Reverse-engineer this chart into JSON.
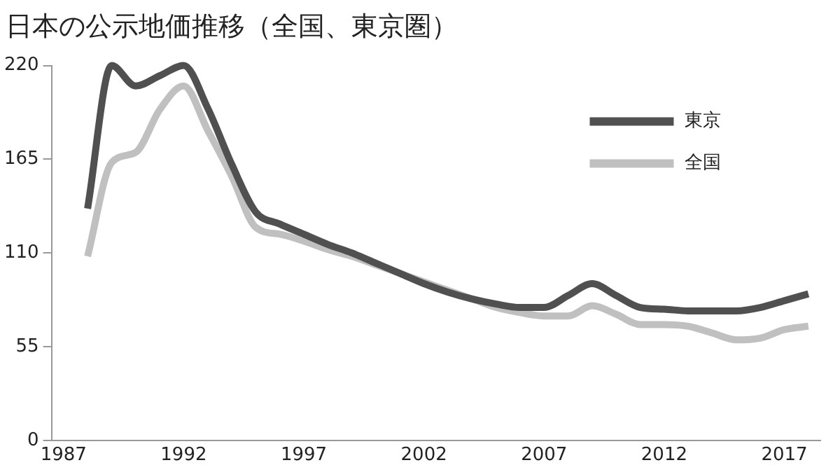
{
  "chart_data": {
    "type": "line",
    "title": "日本の公示地価推移（全国、東京圏）",
    "x": [
      1988,
      1989,
      1990,
      1991,
      1992,
      1993,
      1994,
      1995,
      1996,
      1997,
      1998,
      1999,
      2000,
      2001,
      2002,
      2003,
      2004,
      2005,
      2006,
      2007,
      2008,
      2009,
      2010,
      2011,
      2012,
      2013,
      2014,
      2015,
      2016,
      2017,
      2018
    ],
    "series": [
      {
        "name": "東京",
        "color": "#505050",
        "values": [
          136,
          220,
          208,
          214,
          220,
          195,
          162,
          134,
          127,
          121,
          115,
          110,
          104,
          98,
          92,
          87,
          83,
          80,
          78,
          78,
          85,
          92,
          85,
          78,
          77,
          76,
          76,
          76,
          78,
          82,
          86
        ]
      },
      {
        "name": "全国",
        "color": "#c0c0c0",
        "values": [
          108,
          163,
          169,
          194,
          208,
          182,
          155,
          125,
          121,
          117,
          112,
          108,
          103,
          98,
          93,
          88,
          83,
          78,
          75,
          73,
          73,
          79,
          74,
          68,
          68,
          67,
          63,
          59,
          60,
          65,
          67
        ]
      }
    ],
    "xlim": [
      1986.5,
      2018.5
    ],
    "xticks": [
      1987,
      1992,
      1997,
      2002,
      2007,
      2012,
      2017
    ],
    "ylim": [
      0,
      220
    ],
    "yticks": [
      0,
      55,
      110,
      165,
      220
    ],
    "grid": false,
    "legend": "top right",
    "line_style": "solid",
    "marker": "none"
  }
}
